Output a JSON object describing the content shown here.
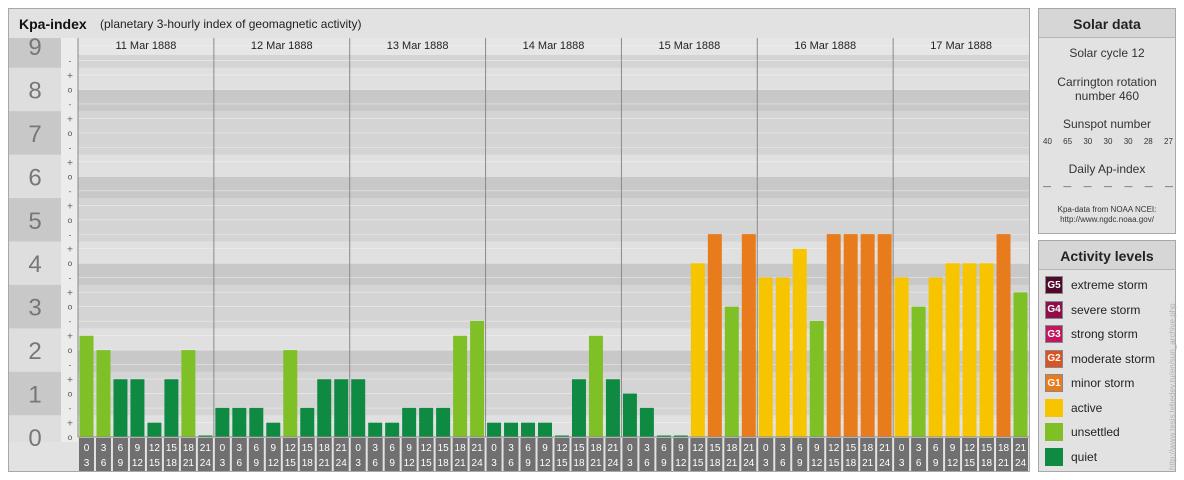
{
  "main": {
    "title": "Kpa-index",
    "subtitle": "(planetary 3-hourly index of geomagnetic activity)"
  },
  "chart_data": {
    "type": "bar",
    "title": "Kpa-index",
    "subtitle": "(planetary 3-hourly index of geomagnetic activity)",
    "ylim": [
      0,
      9
    ],
    "y_ticks": [
      "0",
      "1",
      "2",
      "3",
      "4",
      "5",
      "6",
      "7",
      "8",
      "9"
    ],
    "sub_ticks": [
      "o",
      "+",
      "-"
    ],
    "days": [
      "11 Mar 1888",
      "12 Mar 1888",
      "13 Mar 1888",
      "14 Mar 1888",
      "15 Mar 1888",
      "16 Mar 1888",
      "17 Mar 1888"
    ],
    "intervals": [
      [
        "0",
        "3"
      ],
      [
        "3",
        "6"
      ],
      [
        "6",
        "9"
      ],
      [
        "9",
        "12"
      ],
      [
        "12",
        "15"
      ],
      [
        "15",
        "18"
      ],
      [
        "18",
        "21"
      ],
      [
        "21",
        "24"
      ]
    ],
    "values": [
      [
        2.33,
        2.0,
        1.33,
        1.33,
        0.33,
        1.33,
        2.0,
        0.0
      ],
      [
        0.67,
        0.67,
        0.67,
        0.33,
        2.0,
        0.67,
        1.33,
        1.33
      ],
      [
        1.33,
        0.33,
        0.33,
        0.67,
        0.67,
        0.67,
        2.33,
        2.67
      ],
      [
        0.33,
        0.33,
        0.33,
        0.33,
        0.0,
        1.33,
        2.33,
        1.33
      ],
      [
        1.0,
        0.67,
        0.0,
        0.0,
        4.0,
        4.67,
        3.0,
        4.67
      ],
      [
        3.67,
        3.67,
        4.33,
        2.67,
        4.67,
        4.67,
        4.67,
        4.67
      ],
      [
        3.67,
        3.0,
        3.67,
        4.0,
        4.0,
        4.0,
        4.67,
        3.33
      ]
    ],
    "colors": {
      "quiet": "#0e8a43",
      "unsettled": "#7ec026",
      "active": "#f7c400",
      "minor_storm": "#e87b1c",
      "moderate_storm": "#d95324",
      "strong_storm": "#c0185c",
      "severe_storm": "#8e1048",
      "extreme_storm": "#4f0a2b"
    }
  },
  "solar": {
    "title": "Solar data",
    "cycle": "Solar cycle 12",
    "carrington_line1": "Carrington rotation",
    "carrington_line2": "number 460",
    "sunspot_label": "Sunspot number",
    "sunspot_values": [
      "40",
      "65",
      "30",
      "30",
      "30",
      "28",
      "27"
    ],
    "ap_label": "Daily Ap-index",
    "ap_values": [
      "—",
      "—",
      "—",
      "—",
      "—",
      "—",
      "—"
    ],
    "credit_line1": "Kpa-data from NOAA NCEI:",
    "credit_line2": "http://www.ngdc.noaa.gov/"
  },
  "activity": {
    "title": "Activity levels",
    "items": [
      {
        "code": "G5",
        "label": "extreme storm",
        "color": "#4f0a2b"
      },
      {
        "code": "G4",
        "label": "severe storm",
        "color": "#8e1048"
      },
      {
        "code": "G3",
        "label": "strong storm",
        "color": "#c0185c"
      },
      {
        "code": "G2",
        "label": "moderate storm",
        "color": "#d95324"
      },
      {
        "code": "G1",
        "label": "minor storm",
        "color": "#e87b1c"
      },
      {
        "code": "",
        "label": "active",
        "color": "#f7c400"
      },
      {
        "code": "",
        "label": "unsettled",
        "color": "#7ec026"
      },
      {
        "code": "",
        "label": "quiet",
        "color": "#0e8a43"
      }
    ]
  },
  "watermark": "http://www.tesis.lebedev.ru/en/sun_archive.php"
}
